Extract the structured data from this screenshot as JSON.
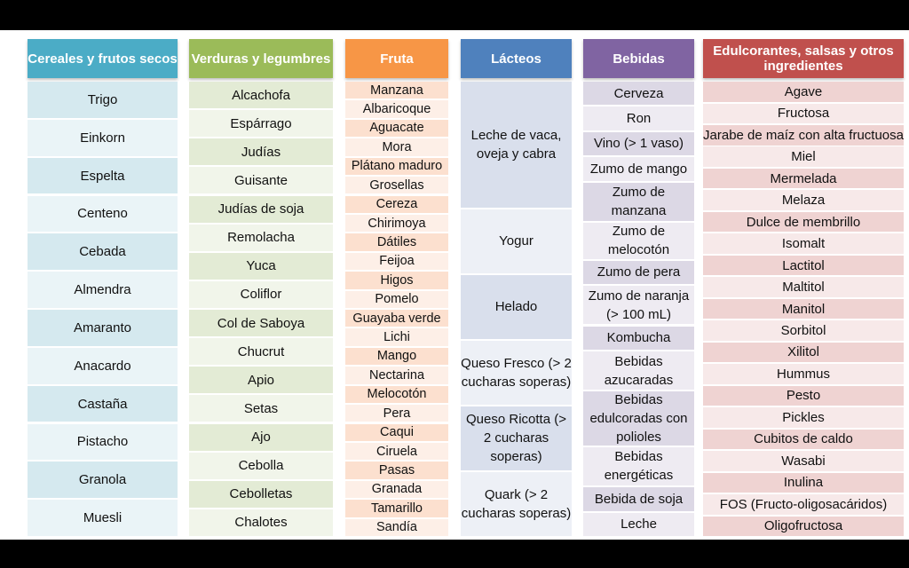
{
  "columns": [
    {
      "header": "Cereales y frutos secos",
      "header_color": "#4bacc6",
      "cell_colors": [
        "#d5e9ef",
        "#eaf4f7"
      ],
      "items": [
        "Trigo",
        "Einkorn",
        "Espelta",
        "Centeno",
        "Cebada",
        "Almendra",
        "Amaranto",
        "Anacardo",
        "Castaña",
        "Pistacho",
        "Granola",
        "Muesli"
      ]
    },
    {
      "header": "Verduras y legumbres",
      "header_color": "#9bbb59",
      "cell_colors": [
        "#e3ebd5",
        "#f1f5ea"
      ],
      "items": [
        "Alcachofa",
        "Espárrago",
        "Judías",
        "Guisante",
        "Judías de soja",
        "Remolacha",
        "Yuca",
        "Coliflor",
        "Col de Saboya",
        "Chucrut",
        "Apio",
        "Setas",
        "Ajo",
        "Cebolla",
        "Cebolletas",
        "Chalotes"
      ]
    },
    {
      "header": "Fruta",
      "header_color": "#f79646",
      "cell_colors": [
        "#fce0cf",
        "#fdefe7"
      ],
      "items": [
        "Manzana",
        "Albaricoque",
        "Aguacate",
        "Mora",
        "Plátano maduro",
        "Grosellas",
        "Cereza",
        "Chirimoya",
        "Dátiles",
        "Feijoa",
        "Higos",
        "Pomelo",
        "Guayaba verde",
        "Lichi",
        "Mango",
        "Nectarina",
        "Melocotón",
        "Pera",
        "Caqui",
        "Ciruela",
        "Pasas",
        "Granada",
        "Tamarillo",
        "Sandía"
      ]
    },
    {
      "header": "Lácteos",
      "header_color": "#4f81bd",
      "cell_colors": [
        "#d9dfec",
        "#edf0f6"
      ],
      "items": [
        "Leche de vaca, oveja y cabra",
        "Yogur",
        "Helado",
        "Queso Fresco (> 2 cucharas soperas)",
        "Queso Ricotta (> 2 cucharas soperas)",
        "Quark (> 2 cucharas soperas)"
      ]
    },
    {
      "header": "Bebidas",
      "header_color": "#8064a2",
      "cell_colors": [
        "#dcd8e5",
        "#eeebf2"
      ],
      "items": [
        "Cerveza",
        "Ron",
        "Vino (> 1 vaso)",
        "Zumo de mango",
        "Zumo de manzana",
        "Zumo de melocotón",
        "Zumo de pera",
        "Zumo de naranja (> 100 mL)",
        "Kombucha",
        "Bebidas azucaradas",
        "Bebidas edulcoradas con polioles",
        "Bebidas energéticas",
        "Bebida de soja",
        "Leche"
      ]
    },
    {
      "header": "Edulcorantes, salsas y otros ingredientes",
      "header_color": "#c0504d",
      "cell_colors": [
        "#efd3d2",
        "#f7e9e9"
      ],
      "items": [
        "Agave",
        "Fructosa",
        "Jarabe de maíz con alta fructuosa",
        "Miel",
        "Mermelada",
        "Melaza",
        "Dulce de membrillo",
        "Isomalt",
        "Lactitol",
        "Maltitol",
        "Manitol",
        "Sorbitol",
        "Xilitol",
        "Hummus",
        "Pesto",
        "Pickles",
        "Cubitos de caldo",
        "Wasabi",
        "Inulina",
        "FOS (Fructo-oligosacáridos)",
        "Oligofructosa"
      ]
    }
  ]
}
